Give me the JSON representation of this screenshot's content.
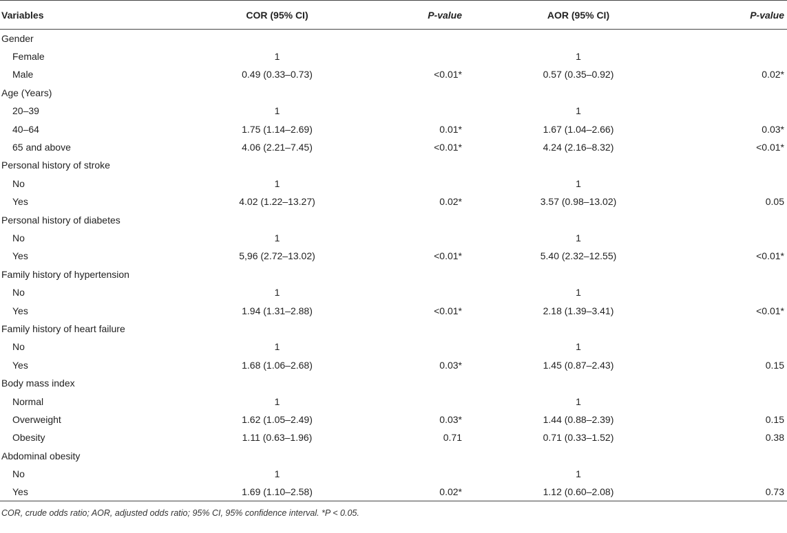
{
  "table": {
    "headers": {
      "variables": "Variables",
      "cor": "COR (95% CI)",
      "p1": "P-value",
      "aor": "AOR (95% CI)",
      "p2": "P-value"
    },
    "rows": [
      {
        "type": "group",
        "label": "Gender"
      },
      {
        "type": "sub",
        "label": "Female",
        "cor": "1",
        "p1": "",
        "aor": "1",
        "p2": ""
      },
      {
        "type": "sub",
        "label": "Male",
        "cor": "0.49 (0.33–0.73)",
        "p1": "<0.01*",
        "aor": "0.57 (0.35–0.92)",
        "p2": "0.02*"
      },
      {
        "type": "group",
        "label": "Age (Years)"
      },
      {
        "type": "sub",
        "label": "20–39",
        "cor": "1",
        "p1": "",
        "aor": "1",
        "p2": ""
      },
      {
        "type": "sub",
        "label": "40–64",
        "cor": "1.75 (1.14–2.69)",
        "p1": "0.01*",
        "aor": "1.67 (1.04–2.66)",
        "p2": "0.03*"
      },
      {
        "type": "sub",
        "label": "65 and above",
        "cor": "4.06 (2.21–7.45)",
        "p1": "<0.01*",
        "aor": "4.24 (2.16–8.32)",
        "p2": "<0.01*"
      },
      {
        "type": "group",
        "label": "Personal history of stroke"
      },
      {
        "type": "sub",
        "label": "No",
        "cor": "1",
        "p1": "",
        "aor": "1",
        "p2": ""
      },
      {
        "type": "sub",
        "label": "Yes",
        "cor": "4.02 (1.22–13.27)",
        "p1": "0.02*",
        "aor": "3.57 (0.98–13.02)",
        "p2": "0.05"
      },
      {
        "type": "group",
        "label": "Personal history of diabetes"
      },
      {
        "type": "sub",
        "label": "No",
        "cor": "1",
        "p1": "",
        "aor": "1",
        "p2": ""
      },
      {
        "type": "sub",
        "label": "Yes",
        "cor": "5,96 (2.72–13.02)",
        "p1": "<0.01*",
        "aor": "5.40 (2.32–12.55)",
        "p2": "<0.01*"
      },
      {
        "type": "group",
        "label": "Family history of hypertension"
      },
      {
        "type": "sub",
        "label": "No",
        "cor": "1",
        "p1": "",
        "aor": "1",
        "p2": ""
      },
      {
        "type": "sub",
        "label": "Yes",
        "cor": "1.94 (1.31–2.88)",
        "p1": "<0.01*",
        "aor": "2.18 (1.39–3.41)",
        "p2": "<0.01*"
      },
      {
        "type": "group",
        "label": "Family history of heart failure"
      },
      {
        "type": "sub",
        "label": "No",
        "cor": "1",
        "p1": "",
        "aor": "1",
        "p2": ""
      },
      {
        "type": "sub",
        "label": "Yes",
        "cor": "1.68 (1.06–2.68)",
        "p1": "0.03*",
        "aor": "1.45 (0.87–2.43)",
        "p2": "0.15"
      },
      {
        "type": "group",
        "label": "Body mass index"
      },
      {
        "type": "sub",
        "label": "Normal",
        "cor": "1",
        "p1": "",
        "aor": "1",
        "p2": ""
      },
      {
        "type": "sub",
        "label": "Overweight",
        "cor": "1.62 (1.05–2.49)",
        "p1": "0.03*",
        "aor": "1.44 (0.88–2.39)",
        "p2": "0.15"
      },
      {
        "type": "sub",
        "label": "Obesity",
        "cor": "1.11 (0.63–1.96)",
        "p1": "0.71",
        "aor": "0.71 (0.33–1.52)",
        "p2": "0.38"
      },
      {
        "type": "group",
        "label": "Abdominal obesity"
      },
      {
        "type": "sub",
        "label": "No",
        "cor": "1",
        "p1": "",
        "aor": "1",
        "p2": ""
      },
      {
        "type": "sub",
        "label": "Yes",
        "cor": "1.69 (1.10–2.58)",
        "p1": "0.02*",
        "aor": "1.12 (0.60–2.08)",
        "p2": "0.73"
      }
    ]
  },
  "footnote": "COR, crude odds ratio; AOR, adjusted odds ratio; 95% CI, 95% confidence interval. *P < 0.05."
}
